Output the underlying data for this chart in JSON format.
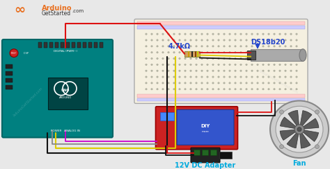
{
  "bg_color": "#e8e8e8",
  "logo_orange": "#e87020",
  "arduino_color": "#008080",
  "arduino_dark": "#006666",
  "breadboard_color": "#f5f0e0",
  "relay_red": "#cc2222",
  "relay_blue": "#3355cc",
  "label_4k7": "4.7kΩ",
  "label_ds": "DS18b20",
  "label_adapter": "12V DC Adapter",
  "label_fan": "Fan",
  "wire_red": "#dd1111",
  "wire_yellow": "#ddcc00",
  "wire_black": "#111111",
  "wire_magenta": "#cc00cc",
  "wire_gray": "#888888",
  "label_color_cyan": "#00aadd",
  "label_color_blue": "#2244cc"
}
